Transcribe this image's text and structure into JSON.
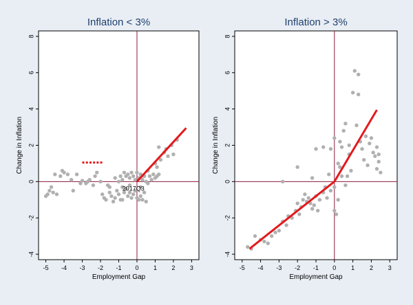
{
  "colors": {
    "background": "#e8eef4",
    "plot_area": "#ffffff",
    "frame": "#000000",
    "zero_lines": "#8b1a3a",
    "points": "#b0b0b0",
    "fit_line": "#e3191c",
    "title": "#1f3f6e",
    "annotation": "#000000"
  },
  "chart_data": [
    {
      "type": "scatter",
      "title": "Inflation < 3%",
      "xlabel": "Employment Gap",
      "ylabel": "Change in Inflation",
      "xlim": [
        -5.4,
        3.4
      ],
      "ylim": [
        -4.3,
        8.3
      ],
      "xticks": [
        -5,
        -4,
        -3,
        -2,
        -1,
        0,
        1,
        2,
        3
      ],
      "yticks": [
        -4,
        -2,
        0,
        2,
        4,
        6,
        8
      ],
      "grid": false,
      "reference_lines": {
        "x": 0,
        "y": 0
      },
      "annotation": {
        "text": "2017Q3",
        "x": -0.8,
        "y": -0.2
      },
      "fit_segments": [
        {
          "style": "solid",
          "x": [
            0,
            2.7
          ],
          "y": [
            0,
            2.95
          ]
        },
        {
          "style": "dotted",
          "x": [
            -3.0,
            -1.9
          ],
          "y": [
            1.05,
            1.05
          ]
        }
      ],
      "points": [
        [
          -5.0,
          -0.8
        ],
        [
          -4.9,
          -0.7
        ],
        [
          -4.8,
          -0.5
        ],
        [
          -4.7,
          -0.3
        ],
        [
          -4.6,
          -0.6
        ],
        [
          -4.4,
          -0.7
        ],
        [
          -4.5,
          0.4
        ],
        [
          -4.2,
          0.3
        ],
        [
          -4.1,
          0.6
        ],
        [
          -4.0,
          0.5
        ],
        [
          -3.8,
          0.4
        ],
        [
          -3.6,
          0.1
        ],
        [
          -3.5,
          -0.5
        ],
        [
          -3.3,
          0.4
        ],
        [
          -3.1,
          -0.1
        ],
        [
          -3.0,
          0.05
        ],
        [
          -2.8,
          -0.1
        ],
        [
          -2.7,
          0.0
        ],
        [
          -2.6,
          0.1
        ],
        [
          -2.4,
          -0.2
        ],
        [
          -2.3,
          0.3
        ],
        [
          -2.2,
          0.5
        ],
        [
          -2.0,
          0.0
        ],
        [
          -1.9,
          -0.7
        ],
        [
          -1.8,
          -0.9
        ],
        [
          -1.7,
          -1.0
        ],
        [
          -1.6,
          -0.2
        ],
        [
          -1.5,
          -0.3
        ],
        [
          -1.4,
          -0.8
        ],
        [
          -1.3,
          -1.1
        ],
        [
          -1.2,
          -0.9
        ],
        [
          -1.1,
          -0.5
        ],
        [
          -1.0,
          -0.7
        ],
        [
          -0.9,
          -1.0
        ],
        [
          -0.8,
          -1.0
        ],
        [
          -0.7,
          -0.6
        ],
        [
          -0.6,
          -0.4
        ],
        [
          -0.5,
          -0.8
        ],
        [
          -0.4,
          -0.6
        ],
        [
          -0.3,
          -0.9
        ],
        [
          -0.2,
          -0.7
        ],
        [
          -0.1,
          -0.5
        ],
        [
          0.0,
          -0.9
        ],
        [
          0.1,
          -1.0
        ],
        [
          0.2,
          -0.8
        ],
        [
          0.3,
          -1.0
        ],
        [
          0.4,
          -0.6
        ],
        [
          0.5,
          -1.1
        ],
        [
          -1.0,
          0.0
        ],
        [
          -0.9,
          0.3
        ],
        [
          -0.8,
          0.1
        ],
        [
          -0.7,
          0.5
        ],
        [
          -0.6,
          0.3
        ],
        [
          -0.5,
          0.4
        ],
        [
          -0.4,
          0.2
        ],
        [
          -0.3,
          0.5
        ],
        [
          -0.2,
          0.3
        ],
        [
          -0.1,
          0.1
        ],
        [
          0.0,
          0.5
        ],
        [
          0.1,
          0.2
        ],
        [
          0.2,
          0.4
        ],
        [
          0.3,
          0.1
        ],
        [
          0.4,
          0.3
        ],
        [
          0.5,
          0.0
        ],
        [
          0.6,
          -0.1
        ],
        [
          0.7,
          0.3
        ],
        [
          0.8,
          0.1
        ],
        [
          0.9,
          0.4
        ],
        [
          1.0,
          0.2
        ],
        [
          1.1,
          0.3
        ],
        [
          1.2,
          0.4
        ],
        [
          1.0,
          1.0
        ],
        [
          1.1,
          0.8
        ],
        [
          1.2,
          1.9
        ],
        [
          1.3,
          1.2
        ],
        [
          1.5,
          1.6
        ],
        [
          1.7,
          1.4
        ],
        [
          1.9,
          2.0
        ],
        [
          2.0,
          1.5
        ],
        [
          2.2,
          2.3
        ],
        [
          1.6,
          1.8
        ],
        [
          -1.5,
          -0.6
        ],
        [
          -1.2,
          0.2
        ],
        [
          -0.8,
          -0.3
        ],
        [
          -0.4,
          -0.2
        ],
        [
          0.2,
          -0.3
        ],
        [
          0.6,
          0.6
        ]
      ]
    },
    {
      "type": "scatter",
      "title": "Inflation > 3%",
      "xlabel": "Employment Gap",
      "ylabel": "Change in Inflation",
      "xlim": [
        -5.4,
        3.4
      ],
      "ylim": [
        -4.3,
        8.3
      ],
      "xticks": [
        -5,
        -4,
        -3,
        -2,
        -1,
        0,
        1,
        2,
        3
      ],
      "yticks": [
        -4,
        -2,
        0,
        2,
        4,
        6,
        8
      ],
      "grid": false,
      "reference_lines": {
        "x": 0,
        "y": 0
      },
      "fit_segments": [
        {
          "style": "solid",
          "x": [
            -4.6,
            0
          ],
          "y": [
            -3.7,
            0
          ]
        },
        {
          "style": "solid",
          "x": [
            0,
            2.3
          ],
          "y": [
            0,
            3.95
          ]
        }
      ],
      "points": [
        [
          -4.7,
          -3.6
        ],
        [
          -4.5,
          -3.7
        ],
        [
          -4.3,
          -3.0
        ],
        [
          -4.0,
          -3.2
        ],
        [
          -3.8,
          -3.3
        ],
        [
          -3.6,
          -3.4
        ],
        [
          -3.4,
          -3.0
        ],
        [
          -3.2,
          -2.8
        ],
        [
          -3.0,
          -2.7
        ],
        [
          -2.8,
          -2.2
        ],
        [
          -2.6,
          -2.4
        ],
        [
          -2.5,
          -1.9
        ],
        [
          -2.3,
          -2.0
        ],
        [
          -2.1,
          -1.6
        ],
        [
          -2.0,
          -1.2
        ],
        [
          -1.9,
          -1.8
        ],
        [
          -1.8,
          -1.4
        ],
        [
          -1.7,
          -1.0
        ],
        [
          -1.6,
          -0.7
        ],
        [
          -1.5,
          -1.1
        ],
        [
          -1.4,
          -0.9
        ],
        [
          -1.3,
          -1.2
        ],
        [
          -1.2,
          -1.5
        ],
        [
          -1.1,
          -1.3
        ],
        [
          -1.0,
          -0.8
        ],
        [
          -0.9,
          -1.6
        ],
        [
          -0.8,
          -1.0
        ],
        [
          -0.6,
          -0.6
        ],
        [
          -0.4,
          -0.9
        ],
        [
          -0.2,
          -0.5
        ],
        [
          0.0,
          -0.3
        ],
        [
          0.0,
          -1.6
        ],
        [
          0.1,
          -1.8
        ],
        [
          -0.2,
          1.8
        ],
        [
          0.0,
          2.4
        ],
        [
          0.2,
          1.0
        ],
        [
          0.3,
          0.8
        ],
        [
          0.4,
          1.9
        ],
        [
          0.5,
          2.8
        ],
        [
          0.6,
          3.2
        ],
        [
          0.7,
          0.3
        ],
        [
          0.8,
          1.5
        ],
        [
          0.9,
          0.6
        ],
        [
          1.0,
          4.9
        ],
        [
          1.1,
          6.1
        ],
        [
          1.3,
          5.9
        ],
        [
          1.3,
          4.8
        ],
        [
          1.2,
          3.1
        ],
        [
          1.4,
          2.2
        ],
        [
          1.5,
          1.8
        ],
        [
          1.6,
          1.2
        ],
        [
          1.8,
          0.9
        ],
        [
          1.9,
          2.1
        ],
        [
          2.0,
          2.4
        ],
        [
          2.1,
          1.6
        ],
        [
          2.2,
          1.4
        ],
        [
          2.3,
          1.9
        ],
        [
          2.4,
          1.1
        ],
        [
          2.3,
          0.7
        ],
        [
          2.5,
          0.5
        ],
        [
          2.4,
          1.5
        ],
        [
          -2.0,
          0.8
        ],
        [
          -1.0,
          1.8
        ],
        [
          -0.6,
          1.9
        ],
        [
          -0.3,
          0.4
        ],
        [
          0.4,
          0.3
        ],
        [
          0.6,
          -0.2
        ],
        [
          -2.8,
          0.0
        ],
        [
          -1.2,
          0.2
        ],
        [
          0.3,
          2.2
        ],
        [
          0.8,
          2.0
        ],
        [
          1.7,
          2.5
        ],
        [
          -0.5,
          -0.3
        ],
        [
          0.2,
          -1.0
        ]
      ]
    }
  ]
}
